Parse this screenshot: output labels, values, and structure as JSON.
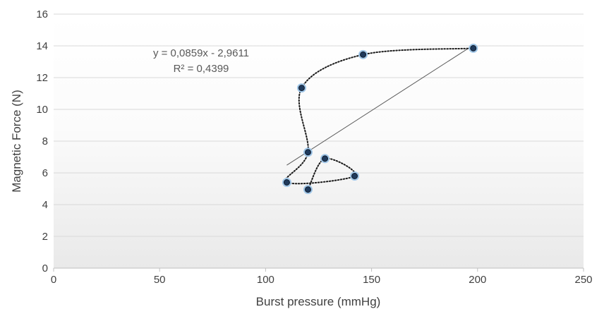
{
  "chart_data": {
    "type": "scatter",
    "xlabel": "Burst pressure (mmHg)",
    "ylabel": "Magnetic Force (N)",
    "xlim": [
      0,
      250
    ],
    "ylim": [
      0,
      16
    ],
    "x_ticks": [
      0,
      50,
      100,
      150,
      200,
      250
    ],
    "y_ticks": [
      0,
      2,
      4,
      6,
      8,
      10,
      12,
      14,
      16
    ],
    "x_tick_labels": [
      "0",
      "50",
      "100",
      "150",
      "200",
      "250"
    ],
    "y_tick_labels": [
      "0",
      "2",
      "4",
      "6",
      "8",
      "10",
      "12",
      "14",
      "16"
    ],
    "grid": "horizontal",
    "background": "vertical gradient, white to light gray",
    "series": [
      {
        "marker_color": "#1f3a5c",
        "connector": "dotted smooth line",
        "points": [
          {
            "x": 198,
            "y": 13.85
          },
          {
            "x": 146,
            "y": 13.45
          },
          {
            "x": 117,
            "y": 11.35
          },
          {
            "x": 120,
            "y": 7.3
          },
          {
            "x": 110,
            "y": 5.4
          },
          {
            "x": 142,
            "y": 5.8
          },
          {
            "x": 128,
            "y": 6.9
          },
          {
            "x": 120,
            "y": 4.95
          }
        ]
      }
    ],
    "trendline": {
      "type": "linear",
      "slope": 0.0859,
      "intercept": -2.9611,
      "x_range": [
        110,
        198
      ],
      "color": "#595959",
      "equation_label": "y = 0,0859x - 2,9611",
      "r2_label": "R² = 0,4399"
    }
  }
}
